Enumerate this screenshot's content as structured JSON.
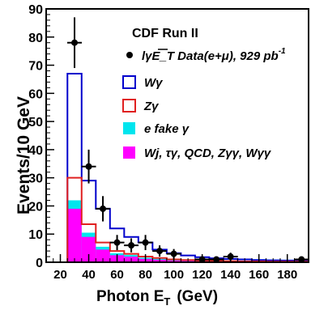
{
  "chart_data": {
    "type": "bar",
    "title": "CDF Run II",
    "xlabel": "Photon E",
    "xlabel_sub": "T",
    "xlabel_unit": "(GeV)",
    "ylabel": "Events/10 GeV",
    "xlim": [
      10,
      195
    ],
    "ylim": [
      0,
      90
    ],
    "x_ticks": [
      20,
      40,
      60,
      80,
      100,
      120,
      140,
      160,
      180
    ],
    "y_ticks": [
      0,
      10,
      20,
      30,
      40,
      50,
      60,
      70,
      80,
      90
    ],
    "bin_edges": [
      25,
      35,
      45,
      55,
      65,
      75,
      85,
      95,
      105,
      115,
      125,
      135,
      145,
      155,
      165,
      175,
      185,
      195
    ],
    "series": [
      {
        "key": "wg",
        "name": "Wγ",
        "style": "outline",
        "color": "#0000cc",
        "values": [
          67,
          29,
          19,
          12,
          9,
          7,
          4.5,
          3.2,
          2.4,
          1.8,
          1.4,
          1.2,
          1.0,
          0.8,
          0.7,
          0.6,
          0.5
        ]
      },
      {
        "key": "zg",
        "name": "Zγ",
        "style": "outline",
        "color": "#e02020",
        "values": [
          30,
          13.5,
          7,
          4,
          3,
          2,
          1.5,
          1.0,
          0.8,
          0.6,
          0.5,
          0.4,
          0.3,
          0.3,
          0.2,
          0.2,
          0.2
        ]
      },
      {
        "key": "efake",
        "name": "e fake γ",
        "style": "fill",
        "color": "#00e5ee",
        "values": [
          22,
          10.5,
          5.5,
          3.2,
          2.6,
          1.6,
          1.2,
          0.8,
          0.6,
          0.5,
          0.4,
          0.3,
          0.3,
          0.2,
          0.2,
          0.2,
          0.1
        ]
      },
      {
        "key": "bkg",
        "name": "Wj, τγ, QCD, Zγγ, Wγγ",
        "style": "fill",
        "color": "#ff00ff",
        "values": [
          19,
          9,
          4.5,
          2.5,
          2,
          1.2,
          0.9,
          0.6,
          0.5,
          0.4,
          0.3,
          0.3,
          0.2,
          0.2,
          0.1,
          0.1,
          0.1
        ]
      }
    ],
    "data_points": {
      "name": "lγE_T Data(e+μ), 929 pb",
      "name_sup": "-1",
      "x": [
        30,
        40,
        50,
        60,
        70,
        80,
        90,
        100,
        110,
        120,
        130,
        140,
        150,
        160,
        170,
        180,
        190
      ],
      "y": [
        78,
        34,
        19,
        7,
        6,
        7,
        4,
        3,
        0,
        1,
        1,
        2,
        0,
        0,
        0,
        0,
        1
      ],
      "yerr": [
        9,
        6,
        4.5,
        2.7,
        2.5,
        2.7,
        2,
        1.7,
        0,
        1,
        1,
        1.4,
        0,
        0,
        0,
        0,
        1
      ]
    },
    "grid": false,
    "legend_position": "top-right"
  }
}
